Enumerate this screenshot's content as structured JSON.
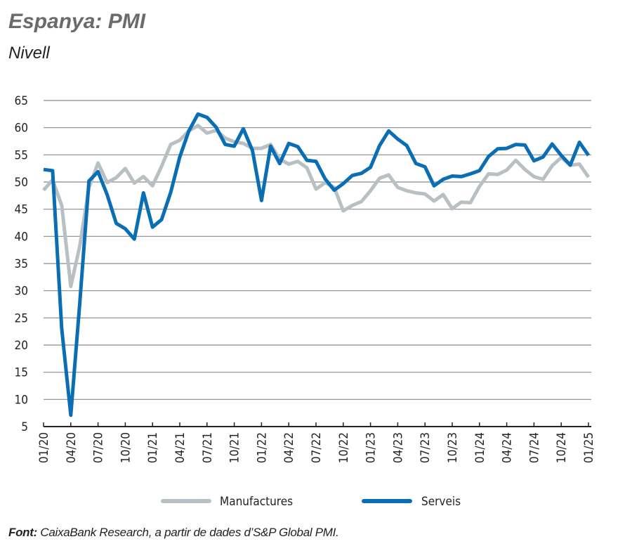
{
  "chart_data": {
    "type": "line",
    "title": "Espanya: PMI",
    "subtitle": "Nivell",
    "xlabel": "",
    "ylabel": "",
    "ylim": [
      5,
      65
    ],
    "yticks": [
      5,
      10,
      15,
      20,
      25,
      30,
      35,
      40,
      45,
      50,
      55,
      60,
      65
    ],
    "grid": true,
    "legend_position": "bottom",
    "x": [
      "01/20",
      "02/20",
      "03/20",
      "04/20",
      "05/20",
      "06/20",
      "07/20",
      "08/20",
      "09/20",
      "10/20",
      "11/20",
      "12/20",
      "01/21",
      "02/21",
      "03/21",
      "04/21",
      "05/21",
      "06/21",
      "07/21",
      "08/21",
      "09/21",
      "10/21",
      "11/21",
      "12/21",
      "01/22",
      "02/22",
      "03/22",
      "04/22",
      "05/22",
      "06/22",
      "07/22",
      "08/22",
      "09/22",
      "10/22",
      "11/22",
      "12/22",
      "01/23",
      "02/23",
      "03/23",
      "04/23",
      "05/23",
      "06/23",
      "07/23",
      "08/23",
      "09/23",
      "10/23",
      "11/23",
      "12/23",
      "01/24",
      "02/24",
      "03/24",
      "04/24",
      "05/24",
      "06/24",
      "07/24",
      "08/24",
      "09/24",
      "10/24",
      "11/24",
      "12/24",
      "01/25"
    ],
    "xticks": [
      "01/20",
      "04/20",
      "07/20",
      "10/20",
      "01/21",
      "04/21",
      "07/21",
      "10/21",
      "01/22",
      "04/22",
      "07/22",
      "10/22",
      "01/23",
      "04/23",
      "07/23",
      "10/23",
      "01/24",
      "04/24",
      "07/24",
      "10/24",
      "01/25"
    ],
    "series": [
      {
        "name": "Manufactures",
        "color": "#b9c0c3",
        "values": [
          48.5,
          50.4,
          45.7,
          30.8,
          38.3,
          49.0,
          53.5,
          49.9,
          50.8,
          52.5,
          49.8,
          51.0,
          49.3,
          52.9,
          56.9,
          57.7,
          59.4,
          60.4,
          59.0,
          59.5,
          58.1,
          57.4,
          57.1,
          56.2,
          56.2,
          56.9,
          54.2,
          53.3,
          53.8,
          52.6,
          48.7,
          49.9,
          49.0,
          44.7,
          45.7,
          46.4,
          48.4,
          50.7,
          51.3,
          49.0,
          48.4,
          48.0,
          47.8,
          46.5,
          47.7,
          45.1,
          46.3,
          46.2,
          49.2,
          51.5,
          51.4,
          52.2,
          54.0,
          52.3,
          51.0,
          50.5,
          53.0,
          54.5,
          53.1,
          53.3,
          50.9
        ]
      },
      {
        "name": "Serveis",
        "color": "#0a6eb4",
        "values": [
          52.3,
          52.1,
          23.0,
          7.1,
          27.9,
          50.2,
          51.9,
          47.7,
          42.4,
          41.4,
          39.5,
          48.0,
          41.7,
          43.1,
          48.1,
          54.6,
          59.4,
          62.5,
          61.9,
          60.1,
          56.9,
          56.6,
          59.8,
          55.8,
          46.6,
          56.6,
          53.4,
          57.1,
          56.5,
          54.0,
          53.8,
          50.6,
          48.5,
          49.7,
          51.2,
          51.6,
          52.7,
          56.7,
          59.4,
          57.9,
          56.7,
          53.4,
          52.8,
          49.3,
          50.5,
          51.1,
          51.0,
          51.5,
          52.1,
          54.7,
          56.1,
          56.2,
          56.9,
          56.8,
          53.9,
          54.6,
          57.0,
          54.9,
          53.1,
          57.3,
          54.9
        ]
      }
    ]
  },
  "source": {
    "label": "Font:",
    "text": " CaixaBank Research, a partir de dades d’S&P Global PMI."
  }
}
